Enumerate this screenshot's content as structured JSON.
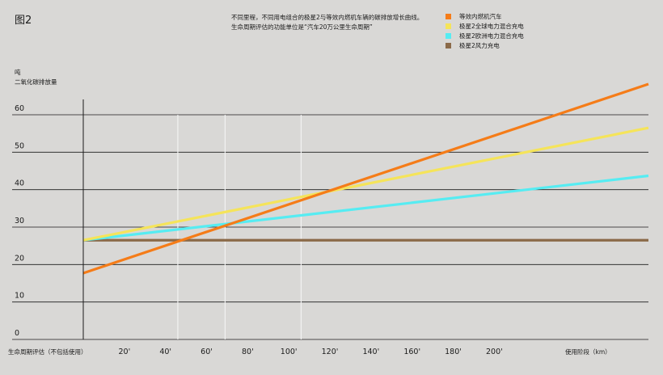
{
  "figure_label": "图2",
  "description": [
    "不同里程，不同用电组合的极星2与等效内燃机车辆的碳排放增长曲线。",
    "生命周期评估的功能单位是“汽车20万公里生命周期”"
  ],
  "y_unit": [
    "吨",
    "二氧化碳排放量"
  ],
  "x_left_note": "生命周期评估（不包括使用）",
  "x_right_note": "使用阶段（km）",
  "chart_data": {
    "type": "line",
    "title": "",
    "xlabel": "使用阶段（km）",
    "ylabel": "吨 二氧化碳排放量",
    "xlim": [
      0,
      275
    ],
    "ylim": [
      0,
      60
    ],
    "x_ticks": [
      {
        "value": 20,
        "label": "20'"
      },
      {
        "value": 40,
        "label": "40'"
      },
      {
        "value": 60,
        "label": "60'"
      },
      {
        "value": 80,
        "label": "80'"
      },
      {
        "value": 100,
        "label": "100'"
      },
      {
        "value": 120,
        "label": "120'"
      },
      {
        "value": 140,
        "label": "140'"
      },
      {
        "value": 160,
        "label": "160'"
      },
      {
        "value": 180,
        "label": "180'"
      },
      {
        "value": 200,
        "label": "200'"
      }
    ],
    "y_ticks": [
      0,
      10,
      20,
      30,
      40,
      50,
      60
    ],
    "vertical_markers": [
      46,
      69,
      106
    ],
    "grid": true,
    "series": [
      {
        "name": "等效内燃机汽车",
        "color": "#f57c18",
        "x": [
          0,
          275
        ],
        "y": [
          17.7,
          68.2
        ]
      },
      {
        "name": "极星2全球电力混合充电",
        "color": "#f5e45a",
        "x": [
          0,
          275
        ],
        "y": [
          26.5,
          56.5
        ]
      },
      {
        "name": "极星2欧洲电力混合充电",
        "color": "#56ecf2",
        "x": [
          0,
          275
        ],
        "y": [
          26.5,
          43.7
        ]
      },
      {
        "name": "极星2风力充电",
        "color": "#8b6a49",
        "x": [
          0,
          275
        ],
        "y": [
          26.5,
          26.5
        ]
      }
    ]
  }
}
